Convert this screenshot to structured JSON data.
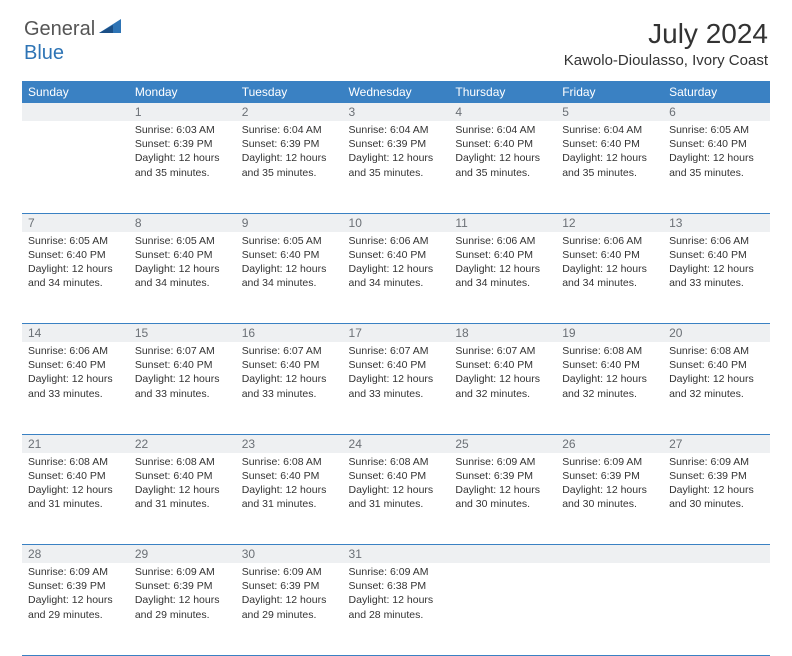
{
  "logo": {
    "word1": "General",
    "word2": "Blue"
  },
  "title": "July 2024",
  "location": "Kawolo-Dioulasso, Ivory Coast",
  "colors": {
    "header_bg": "#3a81c3",
    "header_fg": "#ffffff",
    "daynum_bg": "#eef0f2",
    "daynum_fg": "#6b7076",
    "border": "#3a81c3",
    "logo_accent": "#2e74b5",
    "text": "#333333"
  },
  "day_headers": [
    "Sunday",
    "Monday",
    "Tuesday",
    "Wednesday",
    "Thursday",
    "Friday",
    "Saturday"
  ],
  "weeks": [
    {
      "nums": [
        "",
        "1",
        "2",
        "3",
        "4",
        "5",
        "6"
      ],
      "cells": [
        {},
        {
          "sunrise": "Sunrise: 6:03 AM",
          "sunset": "Sunset: 6:39 PM",
          "day1": "Daylight: 12 hours",
          "day2": "and 35 minutes."
        },
        {
          "sunrise": "Sunrise: 6:04 AM",
          "sunset": "Sunset: 6:39 PM",
          "day1": "Daylight: 12 hours",
          "day2": "and 35 minutes."
        },
        {
          "sunrise": "Sunrise: 6:04 AM",
          "sunset": "Sunset: 6:39 PM",
          "day1": "Daylight: 12 hours",
          "day2": "and 35 minutes."
        },
        {
          "sunrise": "Sunrise: 6:04 AM",
          "sunset": "Sunset: 6:40 PM",
          "day1": "Daylight: 12 hours",
          "day2": "and 35 minutes."
        },
        {
          "sunrise": "Sunrise: 6:04 AM",
          "sunset": "Sunset: 6:40 PM",
          "day1": "Daylight: 12 hours",
          "day2": "and 35 minutes."
        },
        {
          "sunrise": "Sunrise: 6:05 AM",
          "sunset": "Sunset: 6:40 PM",
          "day1": "Daylight: 12 hours",
          "day2": "and 35 minutes."
        }
      ]
    },
    {
      "nums": [
        "7",
        "8",
        "9",
        "10",
        "11",
        "12",
        "13"
      ],
      "cells": [
        {
          "sunrise": "Sunrise: 6:05 AM",
          "sunset": "Sunset: 6:40 PM",
          "day1": "Daylight: 12 hours",
          "day2": "and 34 minutes."
        },
        {
          "sunrise": "Sunrise: 6:05 AM",
          "sunset": "Sunset: 6:40 PM",
          "day1": "Daylight: 12 hours",
          "day2": "and 34 minutes."
        },
        {
          "sunrise": "Sunrise: 6:05 AM",
          "sunset": "Sunset: 6:40 PM",
          "day1": "Daylight: 12 hours",
          "day2": "and 34 minutes."
        },
        {
          "sunrise": "Sunrise: 6:06 AM",
          "sunset": "Sunset: 6:40 PM",
          "day1": "Daylight: 12 hours",
          "day2": "and 34 minutes."
        },
        {
          "sunrise": "Sunrise: 6:06 AM",
          "sunset": "Sunset: 6:40 PM",
          "day1": "Daylight: 12 hours",
          "day2": "and 34 minutes."
        },
        {
          "sunrise": "Sunrise: 6:06 AM",
          "sunset": "Sunset: 6:40 PM",
          "day1": "Daylight: 12 hours",
          "day2": "and 34 minutes."
        },
        {
          "sunrise": "Sunrise: 6:06 AM",
          "sunset": "Sunset: 6:40 PM",
          "day1": "Daylight: 12 hours",
          "day2": "and 33 minutes."
        }
      ]
    },
    {
      "nums": [
        "14",
        "15",
        "16",
        "17",
        "18",
        "19",
        "20"
      ],
      "cells": [
        {
          "sunrise": "Sunrise: 6:06 AM",
          "sunset": "Sunset: 6:40 PM",
          "day1": "Daylight: 12 hours",
          "day2": "and 33 minutes."
        },
        {
          "sunrise": "Sunrise: 6:07 AM",
          "sunset": "Sunset: 6:40 PM",
          "day1": "Daylight: 12 hours",
          "day2": "and 33 minutes."
        },
        {
          "sunrise": "Sunrise: 6:07 AM",
          "sunset": "Sunset: 6:40 PM",
          "day1": "Daylight: 12 hours",
          "day2": "and 33 minutes."
        },
        {
          "sunrise": "Sunrise: 6:07 AM",
          "sunset": "Sunset: 6:40 PM",
          "day1": "Daylight: 12 hours",
          "day2": "and 33 minutes."
        },
        {
          "sunrise": "Sunrise: 6:07 AM",
          "sunset": "Sunset: 6:40 PM",
          "day1": "Daylight: 12 hours",
          "day2": "and 32 minutes."
        },
        {
          "sunrise": "Sunrise: 6:08 AM",
          "sunset": "Sunset: 6:40 PM",
          "day1": "Daylight: 12 hours",
          "day2": "and 32 minutes."
        },
        {
          "sunrise": "Sunrise: 6:08 AM",
          "sunset": "Sunset: 6:40 PM",
          "day1": "Daylight: 12 hours",
          "day2": "and 32 minutes."
        }
      ]
    },
    {
      "nums": [
        "21",
        "22",
        "23",
        "24",
        "25",
        "26",
        "27"
      ],
      "cells": [
        {
          "sunrise": "Sunrise: 6:08 AM",
          "sunset": "Sunset: 6:40 PM",
          "day1": "Daylight: 12 hours",
          "day2": "and 31 minutes."
        },
        {
          "sunrise": "Sunrise: 6:08 AM",
          "sunset": "Sunset: 6:40 PM",
          "day1": "Daylight: 12 hours",
          "day2": "and 31 minutes."
        },
        {
          "sunrise": "Sunrise: 6:08 AM",
          "sunset": "Sunset: 6:40 PM",
          "day1": "Daylight: 12 hours",
          "day2": "and 31 minutes."
        },
        {
          "sunrise": "Sunrise: 6:08 AM",
          "sunset": "Sunset: 6:40 PM",
          "day1": "Daylight: 12 hours",
          "day2": "and 31 minutes."
        },
        {
          "sunrise": "Sunrise: 6:09 AM",
          "sunset": "Sunset: 6:39 PM",
          "day1": "Daylight: 12 hours",
          "day2": "and 30 minutes."
        },
        {
          "sunrise": "Sunrise: 6:09 AM",
          "sunset": "Sunset: 6:39 PM",
          "day1": "Daylight: 12 hours",
          "day2": "and 30 minutes."
        },
        {
          "sunrise": "Sunrise: 6:09 AM",
          "sunset": "Sunset: 6:39 PM",
          "day1": "Daylight: 12 hours",
          "day2": "and 30 minutes."
        }
      ]
    },
    {
      "nums": [
        "28",
        "29",
        "30",
        "31",
        "",
        "",
        ""
      ],
      "cells": [
        {
          "sunrise": "Sunrise: 6:09 AM",
          "sunset": "Sunset: 6:39 PM",
          "day1": "Daylight: 12 hours",
          "day2": "and 29 minutes."
        },
        {
          "sunrise": "Sunrise: 6:09 AM",
          "sunset": "Sunset: 6:39 PM",
          "day1": "Daylight: 12 hours",
          "day2": "and 29 minutes."
        },
        {
          "sunrise": "Sunrise: 6:09 AM",
          "sunset": "Sunset: 6:39 PM",
          "day1": "Daylight: 12 hours",
          "day2": "and 29 minutes."
        },
        {
          "sunrise": "Sunrise: 6:09 AM",
          "sunset": "Sunset: 6:38 PM",
          "day1": "Daylight: 12 hours",
          "day2": "and 28 minutes."
        },
        {},
        {},
        {}
      ]
    }
  ]
}
